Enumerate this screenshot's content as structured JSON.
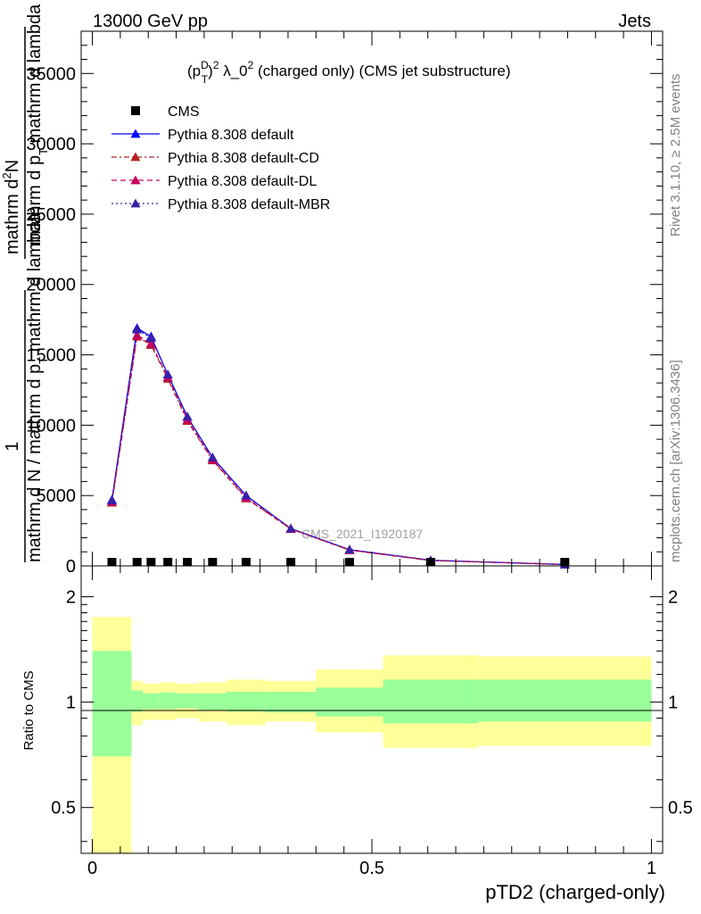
{
  "header": {
    "left": "13000 GeV pp",
    "right": "Jets"
  },
  "side_labels": {
    "rivet": "Rivet 3.1.10, ≥ 2.5M events",
    "mcplots": "mcplots.cern.ch [arXiv:1306.3436]"
  },
  "main_plot": {
    "title": "(p_T^D)^2 λ_0^2 (charged only) (CMS jet substructure)",
    "title_parts": {
      "p": "(p",
      "sup_d": "D",
      "sub_t": "T",
      "close": ")",
      "sup_2a": "2",
      "lambda": " λ_0",
      "sup_2b": "2",
      "rest": " (charged only) (CMS jet substructure)"
    },
    "ylabel_lines": [
      "1",
      "mathrm d N / mathrm d p_T mathrm d lambda",
      "mathrm d^2N",
      "mathrm d p_T mathrm d lambda"
    ],
    "ylabel": {
      "numerator_one": "1",
      "denominator": "mathrm d N / mathrm d p",
      "denominator_sub": "T",
      "denominator_tail": " mathrm d lambda",
      "numerator": "mathrm d",
      "numerator_sup": "2",
      "numerator_tail": "N",
      "frac_denom": "mathrm d p",
      "frac_denom_sub": "T",
      "frac_denom_tail": " mathrm d lambda"
    },
    "watermark": "CMS_2021_I1920187",
    "yticks": [
      "0",
      "5000",
      "10000",
      "15000",
      "20000",
      "25000",
      "30000",
      "35000"
    ],
    "ytick_values": [
      0,
      5000,
      10000,
      15000,
      20000,
      25000,
      30000,
      35000
    ],
    "legend": [
      {
        "label": "CMS",
        "color": "#000000",
        "marker": "square",
        "dash": "none"
      },
      {
        "label": "Pythia 8.308 default",
        "color": "#0000ff",
        "marker": "triangle",
        "dash": "solid"
      },
      {
        "label": "Pythia 8.308 default-CD",
        "color": "#b22222",
        "marker": "triangle",
        "dash": "dashdot"
      },
      {
        "label": "Pythia 8.308 default-DL",
        "color": "#c8005a",
        "marker": "triangle",
        "dash": "dashed"
      },
      {
        "label": "Pythia 8.308 default-MBR",
        "color": "#3a1fa8",
        "marker": "triangle",
        "dash": "dotted"
      }
    ]
  },
  "ratio_plot": {
    "ylabel": "Ratio to CMS",
    "yticks": [
      "0.5",
      "1",
      "2"
    ],
    "ytick_values": [
      0.5,
      1,
      2
    ],
    "band_colors": {
      "inner": "#99ff99",
      "outer": "#ffff99"
    }
  },
  "xaxis": {
    "label": "pTD2 (charged-only)",
    "ticks": [
      "0",
      "0.5",
      "1"
    ],
    "tick_values": [
      0,
      0.5,
      1
    ]
  },
  "chart_data": [
    {
      "type": "line",
      "title": "(p_T^D)^2 λ_0^2 (charged only) (CMS jet substructure)",
      "xlabel": "pTD2 (charged-only)",
      "ylabel": "1 / (mathrm d N / mathrm d p_T mathrm d lambda) mathrm d^2N / (mathrm d p_T mathrm d lambda)",
      "xlim": [
        -0.02,
        1.02
      ],
      "ylim": [
        0,
        38000
      ],
      "grid": false,
      "legend_placement": "top-left",
      "bin_edges": [
        0,
        0.07,
        0.09,
        0.12,
        0.15,
        0.19,
        0.24,
        0.31,
        0.4,
        0.52,
        0.69,
        1.0
      ],
      "series": [
        {
          "name": "CMS",
          "x": [
            0.035,
            0.08,
            0.105,
            0.135,
            0.17,
            0.215,
            0.275,
            0.355,
            0.46,
            0.605,
            0.845
          ],
          "y": [
            0,
            0,
            0,
            0,
            0,
            0,
            0,
            0,
            0,
            0,
            0
          ]
        },
        {
          "name": "Pythia 8.308 default",
          "x": [
            0.035,
            0.08,
            0.105,
            0.135,
            0.17,
            0.215,
            0.275,
            0.355,
            0.46,
            0.605,
            0.845
          ],
          "y": [
            4700,
            16900,
            16300,
            13600,
            10600,
            7700,
            5000,
            2650,
            1150,
            400,
            100
          ]
        },
        {
          "name": "Pythia 8.308 default-CD",
          "x": [
            0.035,
            0.08,
            0.105,
            0.135,
            0.17,
            0.215,
            0.275,
            0.355,
            0.46,
            0.605,
            0.845
          ],
          "y": [
            4500,
            16300,
            15700,
            13300,
            10300,
            7500,
            4800,
            2620,
            1120,
            380,
            100
          ]
        },
        {
          "name": "Pythia 8.308 default-DL",
          "x": [
            0.035,
            0.08,
            0.105,
            0.135,
            0.17,
            0.215,
            0.275,
            0.355,
            0.46,
            0.605,
            0.845
          ],
          "y": [
            4550,
            16400,
            15800,
            13400,
            10400,
            7550,
            4850,
            2630,
            1130,
            390,
            100
          ]
        },
        {
          "name": "Pythia 8.308 default-MBR",
          "x": [
            0.035,
            0.08,
            0.105,
            0.135,
            0.17,
            0.215,
            0.275,
            0.355,
            0.46,
            0.605,
            0.845
          ],
          "y": [
            4650,
            16800,
            16200,
            13600,
            10600,
            7700,
            5000,
            2660,
            1160,
            400,
            100
          ]
        }
      ]
    },
    {
      "type": "area",
      "ylabel": "Ratio to CMS",
      "xlabel": "pTD2 (charged-only)",
      "xlim": [
        -0.02,
        1.02
      ],
      "ylim": [
        0.37,
        2.45
      ],
      "y_scale": "log",
      "reference_line": 1,
      "bin_edges": [
        0,
        0.07,
        0.09,
        0.12,
        0.15,
        0.19,
        0.24,
        0.31,
        0.4,
        0.52,
        0.69,
        1.0
      ],
      "series": [
        {
          "name": "inner band low",
          "values": [
            0.7,
            0.94,
            0.955,
            0.955,
            0.96,
            0.95,
            0.94,
            0.935,
            0.91,
            0.87,
            0.88
          ]
        },
        {
          "name": "inner band high",
          "values": [
            1.4,
            1.08,
            1.06,
            1.065,
            1.06,
            1.06,
            1.07,
            1.07,
            1.1,
            1.16,
            1.16
          ]
        },
        {
          "name": "outer band low",
          "values": [
            0.37,
            0.86,
            0.89,
            0.89,
            0.9,
            0.88,
            0.86,
            0.88,
            0.82,
            0.74,
            0.75
          ]
        },
        {
          "name": "outer band high",
          "values": [
            1.75,
            1.15,
            1.13,
            1.14,
            1.13,
            1.14,
            1.16,
            1.15,
            1.24,
            1.36,
            1.35
          ]
        }
      ]
    }
  ]
}
